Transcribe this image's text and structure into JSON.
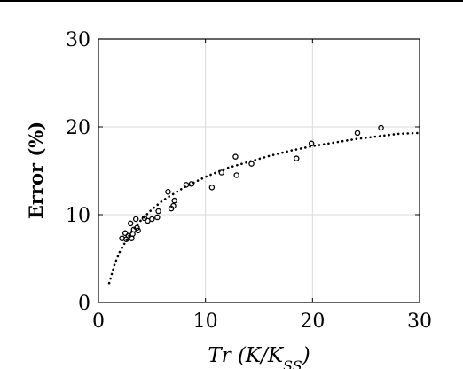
{
  "chart_data": {
    "type": "scatter",
    "title": "",
    "xlabel": "Tr (K/K_SS)",
    "ylabel": "Error (%)",
    "xlim": [
      0,
      30
    ],
    "ylim": [
      0,
      30
    ],
    "xticks": [
      0,
      10,
      20,
      30
    ],
    "yticks": [
      0,
      10,
      20,
      30
    ],
    "grid": true,
    "series": [
      {
        "marker": "circle",
        "x": [
          2.2,
          2.5,
          2.6,
          2.8,
          3.0,
          3.1,
          3.2,
          3.3,
          3.5,
          3.6,
          3.7,
          4.3,
          4.6,
          5.0,
          5.5,
          5.6,
          6.5,
          6.8,
          7.0,
          7.1,
          8.2,
          8.7,
          10.6,
          11.5,
          12.8,
          12.9,
          14.3,
          18.5,
          19.9,
          24.2,
          26.4
        ],
        "y": [
          7.3,
          7.9,
          7.2,
          7.6,
          9.0,
          7.3,
          7.8,
          8.3,
          9.5,
          8.5,
          8.2,
          9.6,
          9.3,
          9.5,
          9.7,
          10.4,
          12.6,
          10.7,
          11.0,
          11.6,
          13.4,
          13.5,
          13.1,
          14.8,
          16.6,
          14.5,
          15.8,
          16.4,
          18.1,
          19.3,
          19.9
        ]
      },
      {
        "style": "dotted-fit",
        "x": [
          1,
          1.5,
          2,
          3,
          4,
          5,
          6,
          8,
          10,
          12,
          14,
          16,
          18,
          20,
          22,
          24,
          26,
          28,
          30
        ],
        "y": [
          2.2,
          4.3,
          5.8,
          7.9,
          9.4,
          10.6,
          11.6,
          13.1,
          14.3,
          15.3,
          16.0,
          16.7,
          17.3,
          17.8,
          18.2,
          18.6,
          18.9,
          19.2,
          19.3
        ]
      }
    ]
  }
}
